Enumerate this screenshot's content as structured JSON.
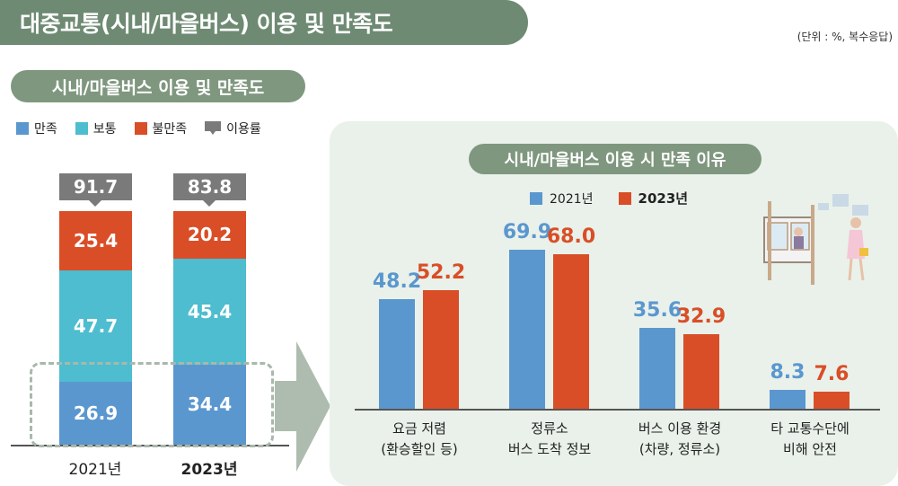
{
  "header": {
    "title": "대중교통(시내/마을버스) 이용 및 만족도",
    "unit_note": "(단위 : %, 복수응답)"
  },
  "colors": {
    "satisfied": "#5b97cf",
    "neutral": "#4dbdcf",
    "dissatisfied": "#d94e27",
    "usage": "#7a7a7a",
    "panel_bg": "#e9f1ea",
    "pill_bg": "#7f977f",
    "title_bg": "#6e8a73"
  },
  "left": {
    "pill_title": "시내/마을버스 이용 및 만족도",
    "legend": [
      {
        "label": "만족",
        "color": "#5b97cf"
      },
      {
        "label": "보통",
        "color": "#4dbdcf"
      },
      {
        "label": "불만족",
        "color": "#d94e27"
      },
      {
        "label": "이용률",
        "color": "#7a7a7a"
      }
    ]
  },
  "right": {
    "pill_title": "시내/마을버스 이용 시 만족 이유",
    "legend": [
      {
        "label": "2021년",
        "color": "#5b97cf"
      },
      {
        "label": "2023년",
        "color": "#d94e27"
      }
    ],
    "illustration_icon": "bus-stop-illustration"
  },
  "chart_data": [
    {
      "type": "bar",
      "stacked": true,
      "categories": [
        "2021년",
        "2023년"
      ],
      "series": [
        {
          "name": "만족",
          "values": [
            26.9,
            34.4
          ]
        },
        {
          "name": "보통",
          "values": [
            47.7,
            45.4
          ]
        },
        {
          "name": "불만족",
          "values": [
            25.4,
            20.2
          ]
        }
      ],
      "usage_rate": {
        "name": "이용률",
        "values": [
          91.7,
          83.8
        ]
      },
      "ylim": [
        0,
        100
      ]
    },
    {
      "type": "bar",
      "categories": [
        "요금 저렴\n(환승할인 등)",
        "정류소\n버스 도착 정보",
        "버스 이용 환경\n(차량, 정류소)",
        "타 교통수단에\n비해 안전"
      ],
      "series": [
        {
          "name": "2021년",
          "values": [
            48.2,
            69.9,
            35.6,
            8.3
          ]
        },
        {
          "name": "2023년",
          "values": [
            52.2,
            68.0,
            32.9,
            7.6
          ]
        }
      ],
      "ylim": [
        0,
        80
      ]
    }
  ]
}
